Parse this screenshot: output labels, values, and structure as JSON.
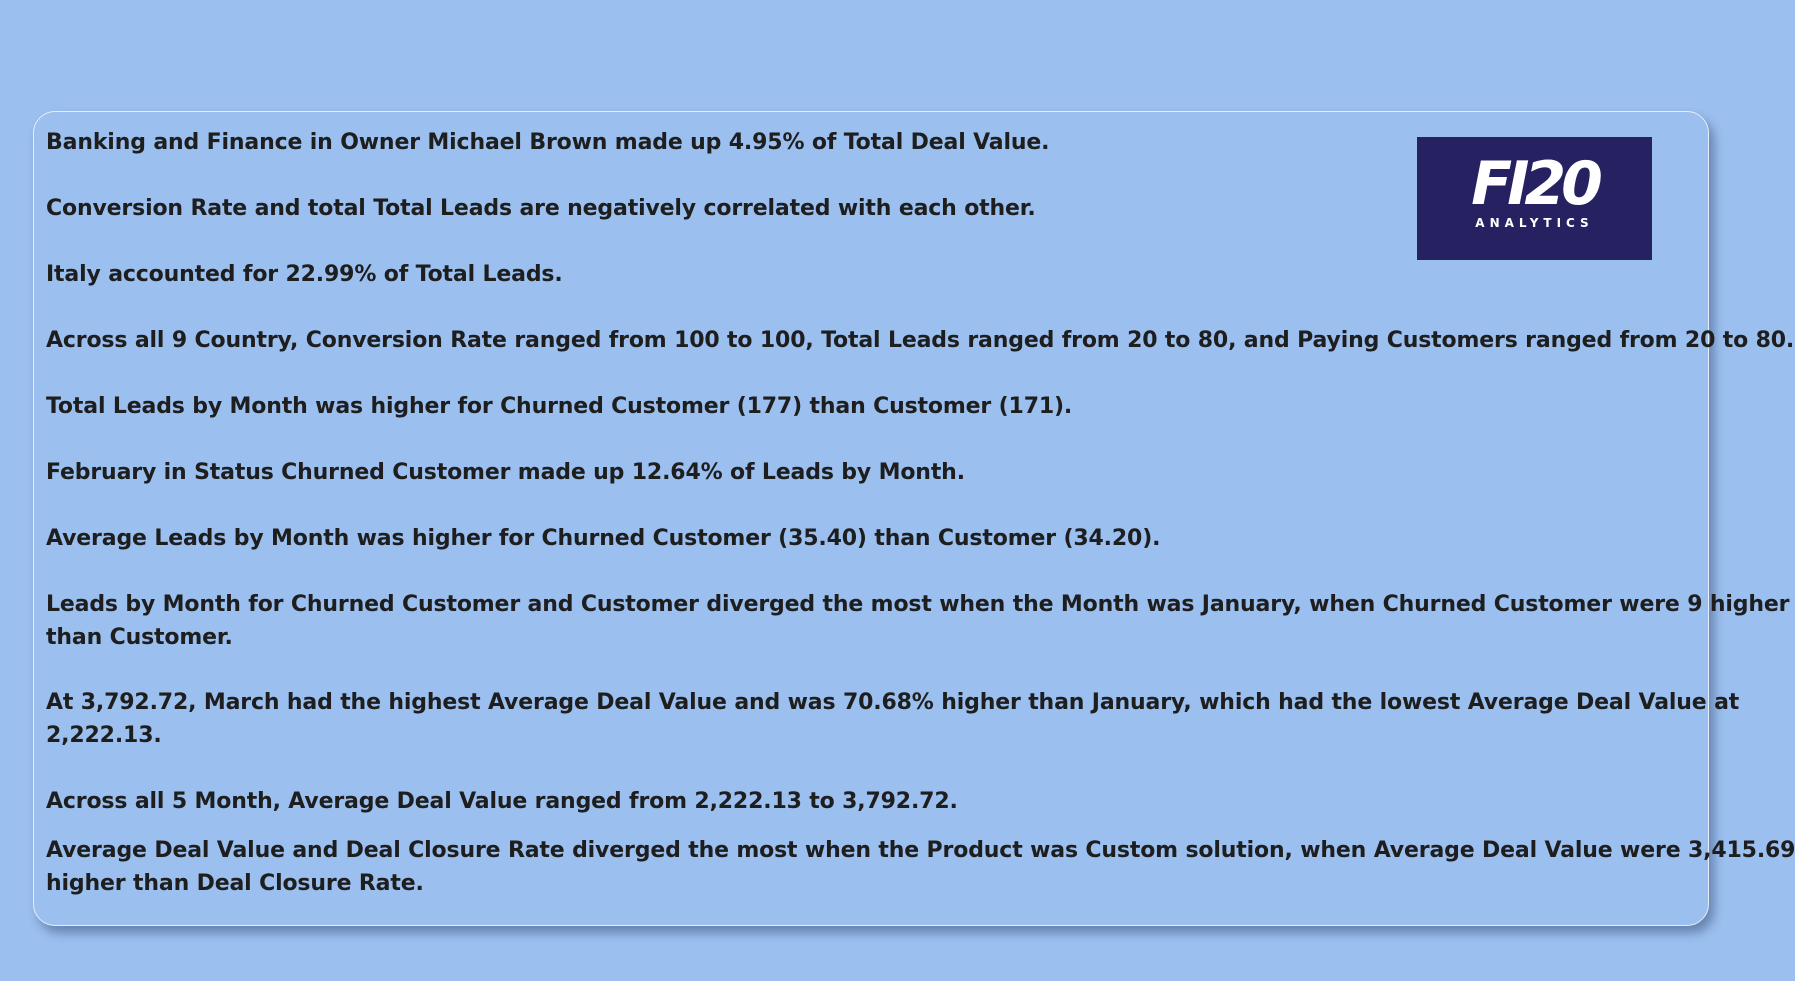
{
  "logo": {
    "mark": "FI20",
    "subtitle": "ANALYTICS",
    "background": "#262262"
  },
  "insights": [
    "Banking and Finance in Owner Michael Brown made up 4.95% of Total Deal Value.",
    "Conversion Rate and total Total Leads are negatively correlated with each other.",
    "Italy accounted for 22.99% of Total Leads.",
    "Across all 9 Country, Conversion Rate ranged from 100 to 100, Total Leads ranged from 20 to 80, and Paying Customers ranged from 20 to 80.",
    "Total Leads by Month was higher for Churned Customer (177) than Customer (171).",
    "February in Status Churned Customer made up 12.64% of Leads by Month.",
    "Average Leads by Month was higher for Churned Customer (35.40) than Customer (34.20).",
    "Leads by Month for Churned Customer and Customer diverged the most when the Month was January, when Churned Customer were 9 higher",
    "than Customer.",
    "At 3,792.72, March had the highest Average Deal Value and was 70.68% higher than January, which had the lowest Average Deal Value at",
    "2,222.13.",
    "Across all 5 Month, Average Deal Value ranged from 2,222.13 to 3,792.72.",
    "Average Deal Value and Deal Closure Rate diverged the most when the Product was Custom solution, when Average Deal Value were 3,415.69",
    "higher than Deal Closure Rate."
  ],
  "colors": {
    "page_background": "#9bbfef",
    "card_border": "#e6eefb",
    "text": "#1e1e1e"
  }
}
